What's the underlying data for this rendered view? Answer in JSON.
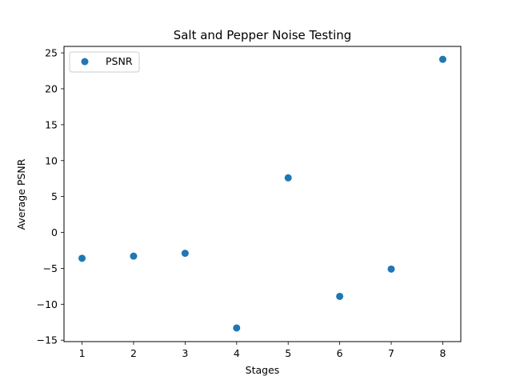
{
  "chart_data": {
    "type": "scatter",
    "title": "Salt and Pepper Noise Testing",
    "xlabel": "Stages",
    "ylabel": "Average PSNR",
    "xlim": [
      0.65,
      8.35
    ],
    "ylim": [
      -15.2,
      25.9
    ],
    "x_ticks": [
      "1",
      "2",
      "3",
      "4",
      "5",
      "6",
      "7",
      "8"
    ],
    "y_ticks": [
      "-15",
      "-10",
      "-5",
      "0",
      "5",
      "10",
      "15",
      "20",
      "25"
    ],
    "grid": false,
    "legend_position": "top-left",
    "series": [
      {
        "name": "PSNR",
        "color": "#1f77b4",
        "x": [
          1,
          2,
          3,
          4,
          5,
          6,
          7,
          8
        ],
        "y": [
          -3.6,
          -3.3,
          -2.9,
          -13.3,
          7.6,
          -8.9,
          -5.1,
          24.1
        ]
      }
    ]
  }
}
